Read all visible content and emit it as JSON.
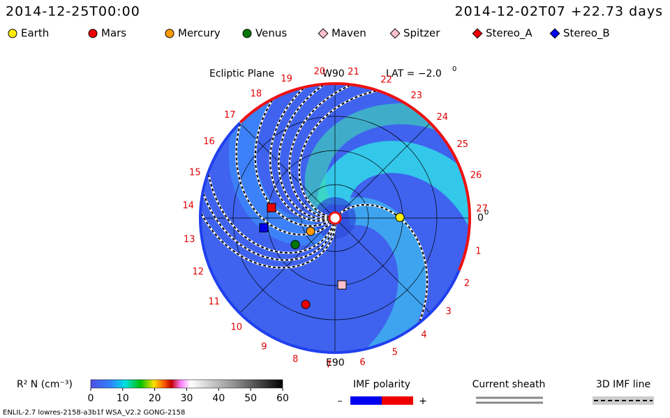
{
  "header": {
    "date": "2014-12-25T00:00",
    "run": "2014-12-02T07 +22.73 days"
  },
  "legend": [
    {
      "name": "Earth",
      "color": "#ffee00",
      "shape": "circle"
    },
    {
      "name": "Mars",
      "color": "#ee0000",
      "shape": "circle"
    },
    {
      "name": "Mercury",
      "color": "#ff9900",
      "shape": "circle"
    },
    {
      "name": "Venus",
      "color": "#007700",
      "shape": "circle"
    },
    {
      "name": "Maven",
      "color": "#ffc0cb",
      "shape": "diamond"
    },
    {
      "name": "Spitzer",
      "color": "#ffc0cb",
      "shape": "diamond"
    },
    {
      "name": "Stereo_A",
      "color": "#ee0000",
      "shape": "diamond"
    },
    {
      "name": "Stereo_B",
      "color": "#0000ee",
      "shape": "diamond"
    }
  ],
  "plot": {
    "plane": "Ecliptic Plane",
    "top_label": "W90",
    "bottom_label": "E90",
    "lat": "LAT = −2.0",
    "lat_sup": "0",
    "zero_label": "0",
    "zero_sup": "0",
    "sectors": [
      1,
      2,
      3,
      4,
      5,
      6,
      7,
      8,
      9,
      10,
      11,
      12,
      13,
      14,
      15,
      16,
      17,
      18,
      19,
      20,
      21,
      22,
      23,
      24,
      25,
      26,
      27
    ]
  },
  "colorbar": {
    "label": "R² N (cm⁻³)",
    "range": [
      0,
      60
    ],
    "ticks": [
      0,
      10,
      20,
      30,
      40,
      50,
      60
    ]
  },
  "imf": {
    "title": "IMF polarity",
    "minus": "–",
    "plus": "+"
  },
  "sheath": "Current sheath",
  "imf_line": "3D IMF line",
  "footer": "ENLIL-2.7 lowres-2158-a3b1f WSA_V2.2 GONG-2158"
}
